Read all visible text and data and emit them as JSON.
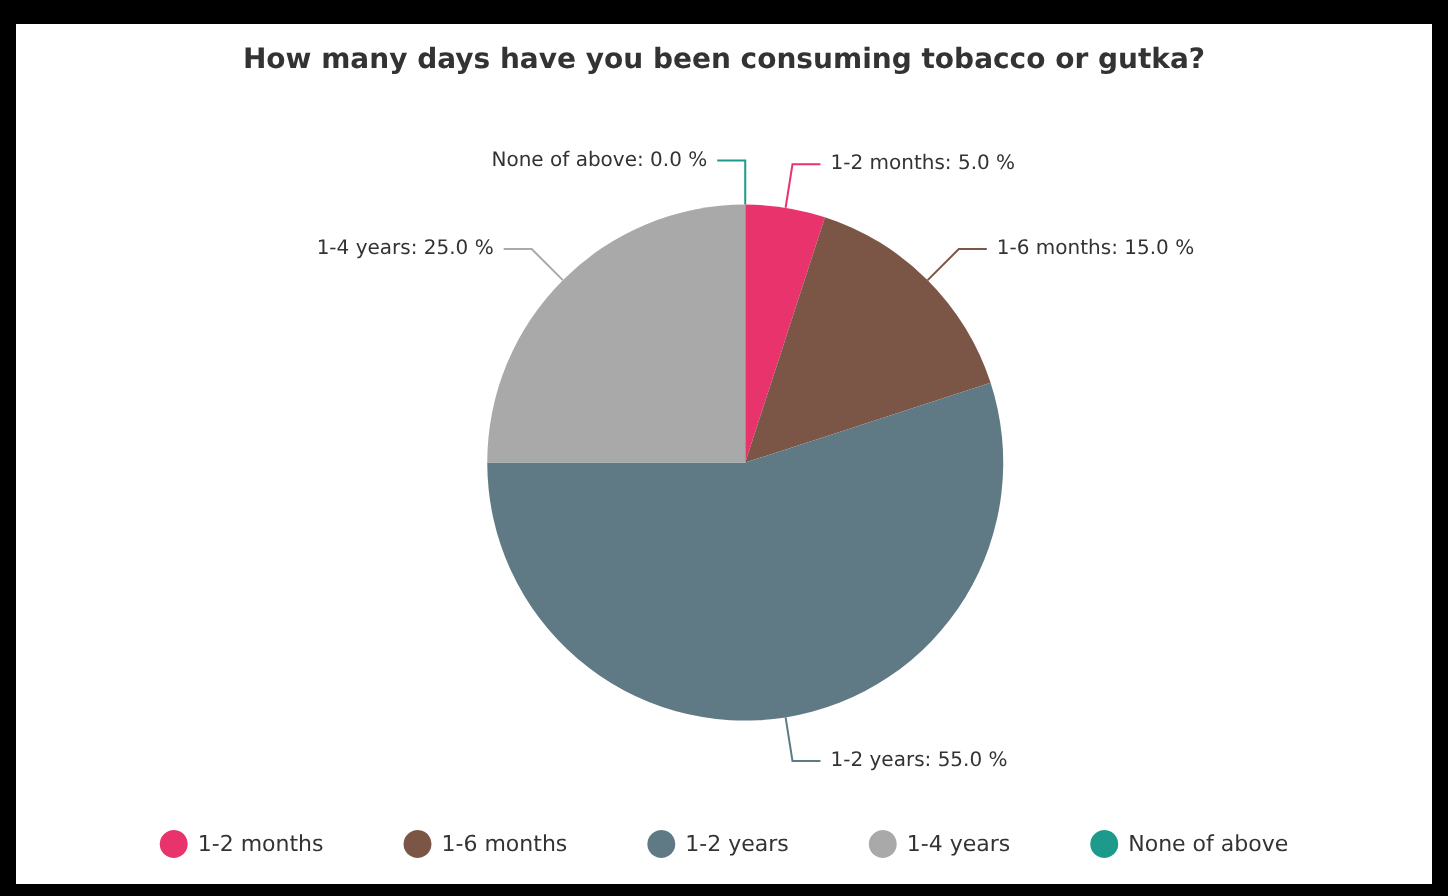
{
  "chart_data": {
    "type": "pie",
    "title": "How many days have you been consuming tobacco or gutka?",
    "categories": [
      "1-2 months",
      "1-6 months",
      "1-2 years",
      "1-4 years",
      "None of above"
    ],
    "values": [
      5,
      15,
      55,
      25,
      0
    ],
    "value_labels": [
      "1-2 months: 5.0 %",
      "1-6 months: 15.0 %",
      "1-2 years: 55.0 %",
      "1-4 years: 25.0 %",
      "None of above: 0.0 %"
    ],
    "colors": [
      "#e8336d",
      "#7b5646",
      "#5f7a84",
      "#a9a9a9",
      "#1e9a8c"
    ],
    "legend": "bottom"
  }
}
